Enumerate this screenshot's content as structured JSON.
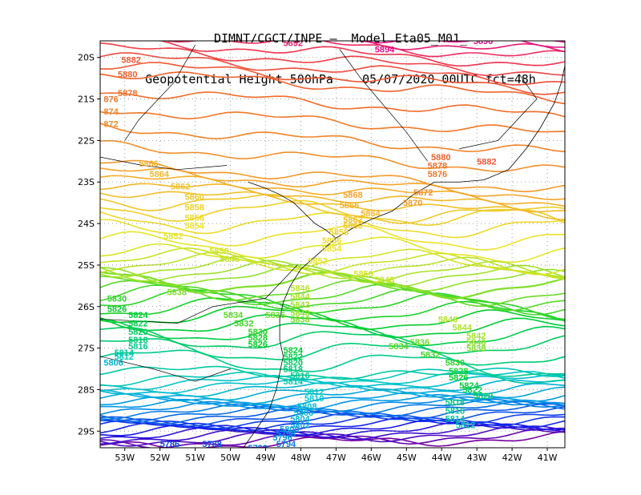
{
  "title": {
    "line1": "DIMNT/CGCT/INPE –  Model Eta05_M01_",
    "line2": "Geopotential Height 500hPa –  05/07/2020 00UTC fct=48h"
  },
  "chart_data": {
    "type": "contour",
    "field": "Geopotential Height 500hPa",
    "units": "gpm",
    "xlim": [
      -53.7,
      -40.5
    ],
    "ylim": [
      -29.4,
      -19.6
    ],
    "x_ticks": [
      -53,
      -52,
      -51,
      -50,
      -49,
      -48,
      -47,
      -46,
      -45,
      -44,
      -43,
      -42,
      -41
    ],
    "x_tick_labels": [
      "53W",
      "52W",
      "51W",
      "50W",
      "49W",
      "48W",
      "47W",
      "46W",
      "45W",
      "44W",
      "43W",
      "42W",
      "41W"
    ],
    "y_ticks": [
      -20,
      -21,
      -22,
      -23,
      -24,
      -25,
      -26,
      -27,
      -28,
      -29
    ],
    "y_tick_labels": [
      "20S",
      "21S",
      "22S",
      "23S",
      "24S",
      "25S",
      "26S",
      "27S",
      "28S",
      "29S"
    ],
    "contour_interval": 2,
    "level_min": 5770,
    "level_max": 5896,
    "grid": "dotted",
    "contour_labels": [
      {
        "text": "5892",
        "lon": -48.5,
        "lat": -19.65
      },
      {
        "text": "5894",
        "lon": -45.9,
        "lat": -19.8
      },
      {
        "text": "5896",
        "lon": -43.1,
        "lat": -19.6
      },
      {
        "text": "5882",
        "lon": -53.1,
        "lat": -20.05
      },
      {
        "text": "5880",
        "lon": -53.2,
        "lat": -20.4
      },
      {
        "text": "5878",
        "lon": -53.2,
        "lat": -20.85
      },
      {
        "text": "876",
        "lon": -53.6,
        "lat": -21.0
      },
      {
        "text": "874",
        "lon": -53.6,
        "lat": -21.3
      },
      {
        "text": "872",
        "lon": -53.6,
        "lat": -21.6
      },
      {
        "text": "5866",
        "lon": -52.6,
        "lat": -22.55
      },
      {
        "text": "5864",
        "lon": -52.3,
        "lat": -22.8
      },
      {
        "text": "5862",
        "lon": -51.7,
        "lat": -23.1
      },
      {
        "text": "5860",
        "lon": -51.3,
        "lat": -23.35
      },
      {
        "text": "5858",
        "lon": -51.3,
        "lat": -23.6
      },
      {
        "text": "5856",
        "lon": -51.3,
        "lat": -23.85
      },
      {
        "text": "5854",
        "lon": -51.3,
        "lat": -24.05
      },
      {
        "text": "5852",
        "lon": -51.9,
        "lat": -24.3
      },
      {
        "text": "5850",
        "lon": -50.6,
        "lat": -24.65
      },
      {
        "text": "5848",
        "lon": -50.3,
        "lat": -24.85
      },
      {
        "text": "5838",
        "lon": -51.8,
        "lat": -25.65
      },
      {
        "text": "5830",
        "lon": -53.5,
        "lat": -25.8
      },
      {
        "text": "5826",
        "lon": -53.5,
        "lat": -26.05
      },
      {
        "text": "5824",
        "lon": -52.9,
        "lat": -26.2
      },
      {
        "text": "5822",
        "lon": -52.9,
        "lat": -26.4
      },
      {
        "text": "5820",
        "lon": -52.9,
        "lat": -26.6
      },
      {
        "text": "5818",
        "lon": -52.9,
        "lat": -26.8
      },
      {
        "text": "5816",
        "lon": -52.9,
        "lat": -26.95
      },
      {
        "text": "5814",
        "lon": -53.3,
        "lat": -27.1
      },
      {
        "text": "5812",
        "lon": -53.3,
        "lat": -27.2
      },
      {
        "text": "5806",
        "lon": -53.6,
        "lat": -27.35
      },
      {
        "text": "5834",
        "lon": -50.2,
        "lat": -26.2
      },
      {
        "text": "5832",
        "lon": -49.9,
        "lat": -26.4
      },
      {
        "text": "5830",
        "lon": -49.5,
        "lat": -26.6
      },
      {
        "text": "5828",
        "lon": -49.5,
        "lat": -26.75
      },
      {
        "text": "5826",
        "lon": -49.5,
        "lat": -26.9
      },
      {
        "text": "5836",
        "lon": -49.0,
        "lat": -26.2
      },
      {
        "text": "5838",
        "lon": -48.3,
        "lat": -26.3
      },
      {
        "text": "5840",
        "lon": -48.3,
        "lat": -26.15
      },
      {
        "text": "5842",
        "lon": -48.3,
        "lat": -25.95
      },
      {
        "text": "5844",
        "lon": -48.3,
        "lat": -25.75
      },
      {
        "text": "5846",
        "lon": -48.3,
        "lat": -25.55
      },
      {
        "text": "5852",
        "lon": -47.8,
        "lat": -24.9
      },
      {
        "text": "5854",
        "lon": -47.4,
        "lat": -24.6
      },
      {
        "text": "5856",
        "lon": -47.4,
        "lat": -24.4
      },
      {
        "text": "5858",
        "lon": -47.2,
        "lat": -24.2
      },
      {
        "text": "5860",
        "lon": -46.8,
        "lat": -24.05
      },
      {
        "text": "5862",
        "lon": -46.8,
        "lat": -23.9
      },
      {
        "text": "5864",
        "lon": -46.3,
        "lat": -23.75
      },
      {
        "text": "5866",
        "lon": -46.9,
        "lat": -23.55
      },
      {
        "text": "5868",
        "lon": -46.8,
        "lat": -23.3
      },
      {
        "text": "5850",
        "lon": -46.5,
        "lat": -25.2
      },
      {
        "text": "5848",
        "lon": -45.9,
        "lat": -25.35
      },
      {
        "text": "5870",
        "lon": -45.1,
        "lat": -23.5
      },
      {
        "text": "5872",
        "lon": -44.8,
        "lat": -23.25
      },
      {
        "text": "5876",
        "lon": -44.4,
        "lat": -22.8
      },
      {
        "text": "5878",
        "lon": -44.4,
        "lat": -22.6
      },
      {
        "text": "5880",
        "lon": -44.3,
        "lat": -22.4
      },
      {
        "text": "5882",
        "lon": -43.0,
        "lat": -22.5
      },
      {
        "text": "5846",
        "lon": -44.1,
        "lat": -26.3
      },
      {
        "text": "5844",
        "lon": -43.7,
        "lat": -26.5
      },
      {
        "text": "5842",
        "lon": -43.3,
        "lat": -26.7
      },
      {
        "text": "5840",
        "lon": -43.3,
        "lat": -26.85
      },
      {
        "text": "5838",
        "lon": -43.3,
        "lat": -27.0
      },
      {
        "text": "5836",
        "lon": -44.9,
        "lat": -26.85
      },
      {
        "text": "5834",
        "lon": -45.5,
        "lat": -26.95
      },
      {
        "text": "5832",
        "lon": -44.6,
        "lat": -27.15
      },
      {
        "text": "5830",
        "lon": -43.9,
        "lat": -27.35
      },
      {
        "text": "5828",
        "lon": -43.8,
        "lat": -27.55
      },
      {
        "text": "5826",
        "lon": -43.8,
        "lat": -27.7
      },
      {
        "text": "5824",
        "lon": -43.5,
        "lat": -27.9
      },
      {
        "text": "5822",
        "lon": -43.4,
        "lat": -28.0
      },
      {
        "text": "5820",
        "lon": -43.1,
        "lat": -28.15
      },
      {
        "text": "5818",
        "lon": -43.9,
        "lat": -28.3
      },
      {
        "text": "5816",
        "lon": -43.9,
        "lat": -28.5
      },
      {
        "text": "5814",
        "lon": -43.9,
        "lat": -28.7
      },
      {
        "text": "5812",
        "lon": -43.6,
        "lat": -28.85
      },
      {
        "text": "5824",
        "lon": -48.5,
        "lat": -27.05
      },
      {
        "text": "5822",
        "lon": -48.5,
        "lat": -27.2
      },
      {
        "text": "5820",
        "lon": -48.5,
        "lat": -27.35
      },
      {
        "text": "5818",
        "lon": -48.5,
        "lat": -27.5
      },
      {
        "text": "5816",
        "lon": -48.3,
        "lat": -27.65
      },
      {
        "text": "5814",
        "lon": -48.5,
        "lat": -27.8
      },
      {
        "text": "5812",
        "lon": -47.9,
        "lat": -28.05
      },
      {
        "text": "5810",
        "lon": -47.9,
        "lat": -28.2
      },
      {
        "text": "5808",
        "lon": -48.1,
        "lat": -28.4
      },
      {
        "text": "5806",
        "lon": -48.2,
        "lat": -28.55
      },
      {
        "text": "5804",
        "lon": -48.3,
        "lat": -28.7
      },
      {
        "text": "5802",
        "lon": -48.3,
        "lat": -28.85
      },
      {
        "text": "5800",
        "lon": -48.6,
        "lat": -28.95
      },
      {
        "text": "5798",
        "lon": -48.7,
        "lat": -29.05
      },
      {
        "text": "5796",
        "lon": -48.8,
        "lat": -29.15
      },
      {
        "text": "5794",
        "lon": -48.7,
        "lat": -29.3
      },
      {
        "text": "5792",
        "lon": -49.5,
        "lat": -29.4
      },
      {
        "text": "5790",
        "lon": -49.3,
        "lat": -29.6
      },
      {
        "text": "5788",
        "lon": -50.8,
        "lat": -29.3
      },
      {
        "text": "5786",
        "lon": -52.0,
        "lat": -29.3
      },
      {
        "text": "5792",
        "lon": -45.5,
        "lat": -29.65
      }
    ]
  }
}
